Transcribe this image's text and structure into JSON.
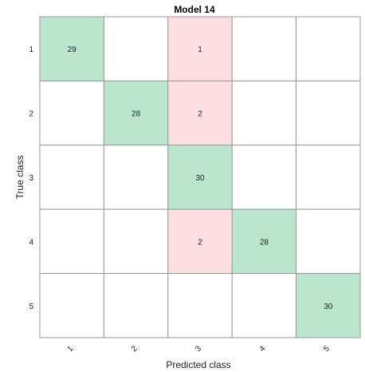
{
  "chart_data": {
    "type": "heatmap",
    "title": "Model 14",
    "xlabel": "Predicted class",
    "ylabel": "True class",
    "row_labels": [
      "1",
      "2",
      "3",
      "4",
      "5"
    ],
    "col_labels": [
      "1",
      "2",
      "3",
      "4",
      "5"
    ],
    "matrix": [
      [
        29,
        null,
        1,
        null,
        null
      ],
      [
        null,
        28,
        2,
        null,
        null
      ],
      [
        null,
        null,
        30,
        null,
        null
      ],
      [
        null,
        null,
        2,
        28,
        null
      ],
      [
        null,
        null,
        null,
        null,
        30
      ]
    ],
    "colors": {
      "correct": "#b9e6cd",
      "incorrect": "#fbdfe1",
      "empty": "#ffffff",
      "grid": "#9a9a9a"
    }
  }
}
